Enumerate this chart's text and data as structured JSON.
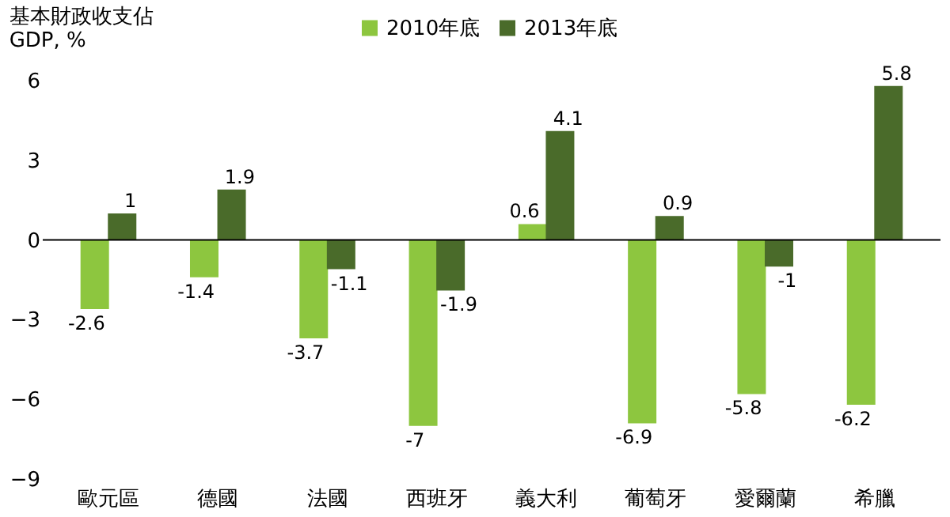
{
  "chart_data": {
    "type": "bar",
    "ylabel": "基本財政收支佔\nGDP, %",
    "categories": [
      "歐元區",
      "德國",
      "法國",
      "西班牙",
      "義大利",
      "葡萄牙",
      "愛爾蘭",
      "希臘"
    ],
    "series": [
      {
        "name": "2010年底",
        "color": "#8dc63f",
        "values": [
          -2.6,
          -1.4,
          -3.7,
          -7,
          0.6,
          -6.9,
          -5.8,
          -6.2
        ]
      },
      {
        "name": "2013年底",
        "color": "#4a6b2a",
        "values": [
          1,
          1.9,
          -1.1,
          -1.9,
          4.1,
          0.9,
          -1,
          5.8
        ]
      }
    ],
    "ylim": [
      -9,
      6
    ],
    "yticks": [
      -9,
      -6,
      -3,
      0,
      3,
      6
    ],
    "grid": false,
    "legend": "top",
    "data_labels": true,
    "ref_lines": [
      {
        "axis": "y",
        "value": 0,
        "color": "#000000"
      }
    ]
  }
}
